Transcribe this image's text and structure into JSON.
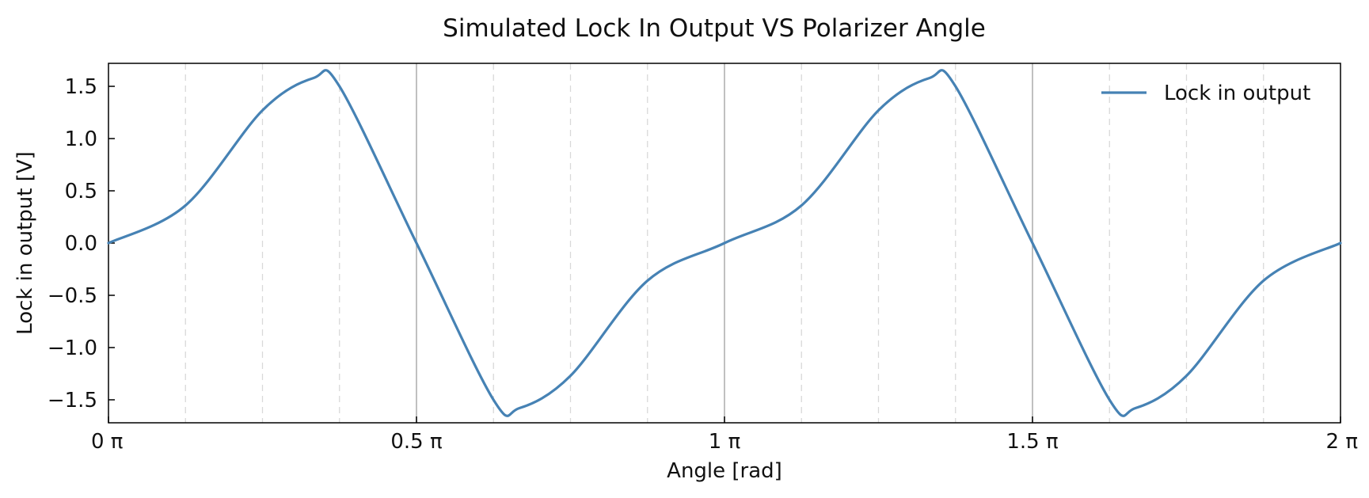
{
  "chart_data": {
    "type": "line",
    "title": "Simulated Lock In Output VS Polarizer Angle",
    "xlabel": "Angle [rad]",
    "ylabel": "Lock in output [V]",
    "x_unit": "π",
    "xlim": [
      0,
      2
    ],
    "ylim": [
      -1.72,
      1.72
    ],
    "x_ticks": [
      0,
      0.5,
      1,
      1.5,
      2
    ],
    "x_tick_labels": [
      "0 π",
      "0.5 π",
      "1 π",
      "1.5 π",
      "2 π"
    ],
    "y_ticks": [
      1.5,
      1.0,
      0.5,
      0.0,
      -0.5,
      -1.0,
      -1.5
    ],
    "y_tick_labels": [
      "1.5",
      "1.0",
      "0.5",
      "0.0",
      "−0.5",
      "−1.0",
      "−1.5"
    ],
    "x_grid_major": [
      0.5,
      1,
      1.5
    ],
    "x_grid_minor": [
      0.125,
      0.25,
      0.375,
      0.625,
      0.75,
      0.875,
      1.125,
      1.25,
      1.375,
      1.625,
      1.75,
      1.875
    ],
    "grid": "vertical",
    "legend_position": "top-right",
    "series": [
      {
        "name": "Lock in output",
        "color": "#4682b4",
        "x": [
          0,
          0.125,
          0.25,
          0.333,
          0.375,
          0.5,
          0.625,
          0.667,
          0.75,
          0.875,
          1,
          1.125,
          1.25,
          1.333,
          1.375,
          1.5,
          1.625,
          1.667,
          1.75,
          1.875,
          2
        ],
        "y": [
          0.0,
          0.36,
          1.27,
          1.58,
          1.5,
          0.0,
          -1.5,
          -1.58,
          -1.27,
          -0.36,
          0.0,
          0.36,
          1.27,
          1.58,
          1.5,
          0.0,
          -1.5,
          -1.58,
          -1.27,
          -0.36,
          0.0
        ]
      }
    ]
  }
}
